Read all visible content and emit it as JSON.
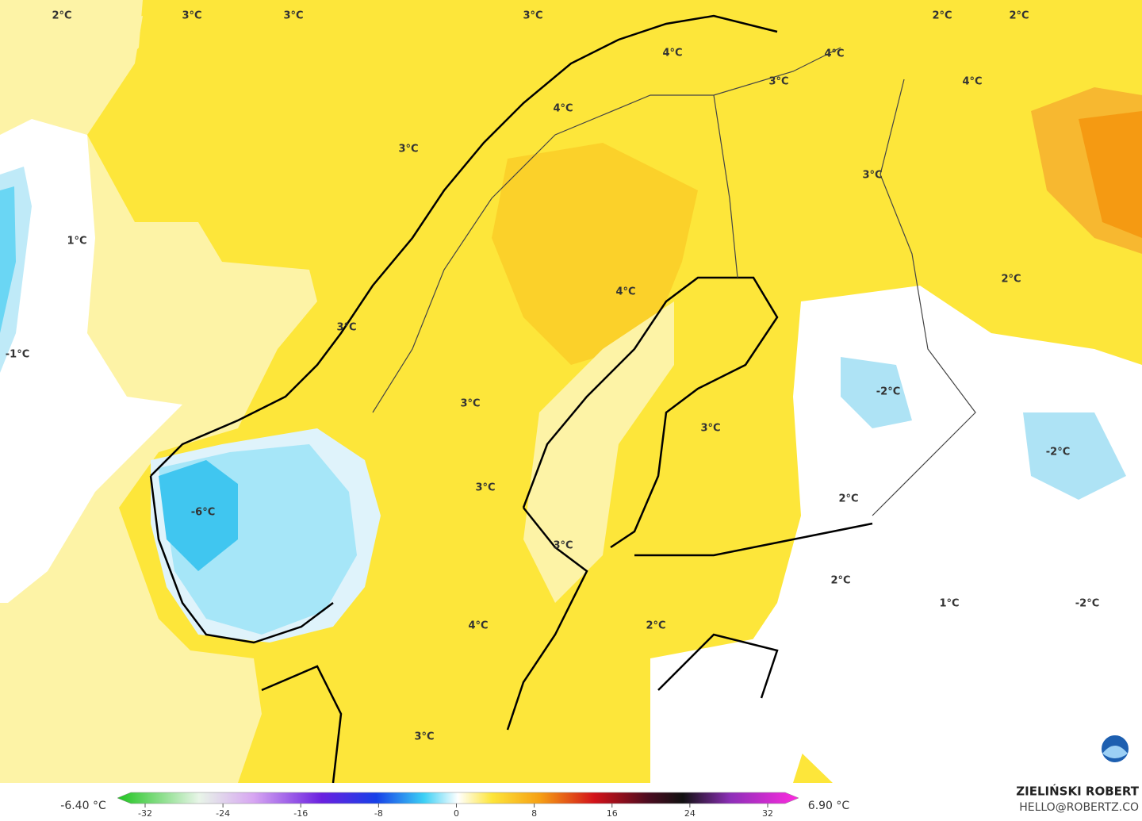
{
  "map": {
    "labels": [
      "2°C",
      "3°C",
      "3°C",
      "3°C",
      "2°C",
      "2°C",
      "4°C",
      "4°C",
      "3°C",
      "4°C",
      "4°C",
      "3°C",
      "3°C",
      "1°C",
      "2°C",
      "4°C",
      "3°C",
      "-1°C",
      "-2°C",
      "3°C",
      "3°C",
      "-2°C",
      "3°C",
      "-6°C",
      "2°C",
      "3°C",
      "2°C",
      "1°C",
      "-2°C",
      "4°C",
      "2°C",
      "3°C"
    ],
    "legend": {
      "min_label": "-6.40 °C",
      "max_label": "6.90 °C",
      "ticks": [
        -32,
        -24,
        -16,
        -8,
        0,
        8,
        16,
        24,
        32
      ]
    },
    "credit": {
      "name": "ZIELIŃSKI ROBERT",
      "email": "HELLO@ROBERTZ.CO"
    }
  }
}
